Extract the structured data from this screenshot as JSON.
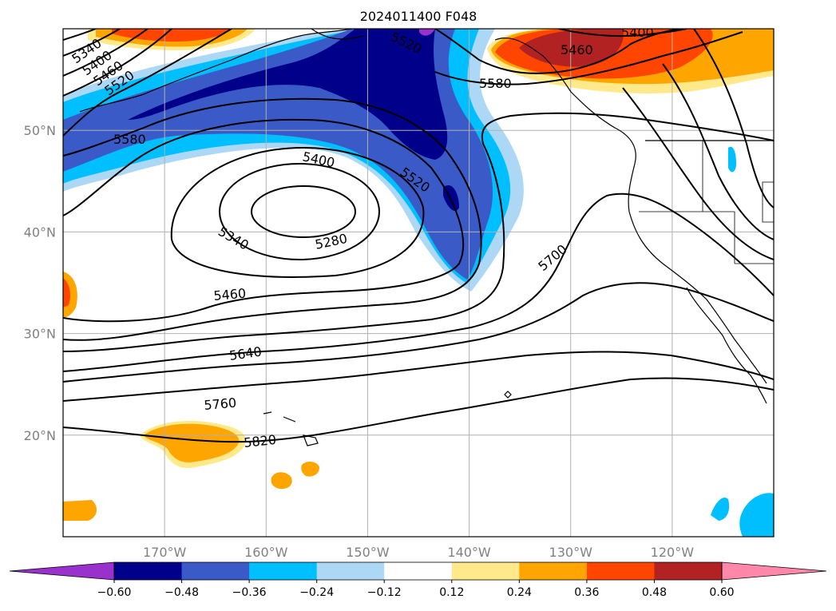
{
  "title": "2024011400 F048",
  "map": {
    "lon_range": [
      -180,
      -110
    ],
    "lat_range": [
      10,
      60
    ],
    "lon_ticks": [
      {
        "value": -170,
        "label": "170°W"
      },
      {
        "value": -160,
        "label": "160°W"
      },
      {
        "value": -150,
        "label": "150°W"
      },
      {
        "value": -140,
        "label": "140°W"
      },
      {
        "value": -130,
        "label": "130°W"
      },
      {
        "value": -120,
        "label": "120°W"
      }
    ],
    "lat_ticks": [
      {
        "value": 20,
        "label": "20°N"
      },
      {
        "value": 30,
        "label": "30°N"
      },
      {
        "value": 40,
        "label": "40°N"
      },
      {
        "value": 50,
        "label": "50°N"
      }
    ],
    "gridlines": true
  },
  "contour_labels": [
    "5340",
    "5400",
    "5460",
    "5520",
    "5580",
    "5520",
    "5460",
    "5400",
    "5580",
    "5400",
    "5520",
    "5340",
    "5280",
    "5700",
    "5460",
    "5640",
    "5760",
    "5820"
  ],
  "colorbar": {
    "ticks": [
      "−0.60",
      "−0.48",
      "−0.36",
      "−0.24",
      "−0.12",
      "0.12",
      "0.24",
      "0.36",
      "0.48",
      "0.60"
    ],
    "colors": [
      "#9932cc",
      "#00008b",
      "#3a5bc7",
      "#00bfff",
      "#add8f5",
      "#ffffff",
      "#ffe98a",
      "#ffa500",
      "#ff4500",
      "#b22222",
      "#ff88aa"
    ],
    "extend": "both"
  }
}
